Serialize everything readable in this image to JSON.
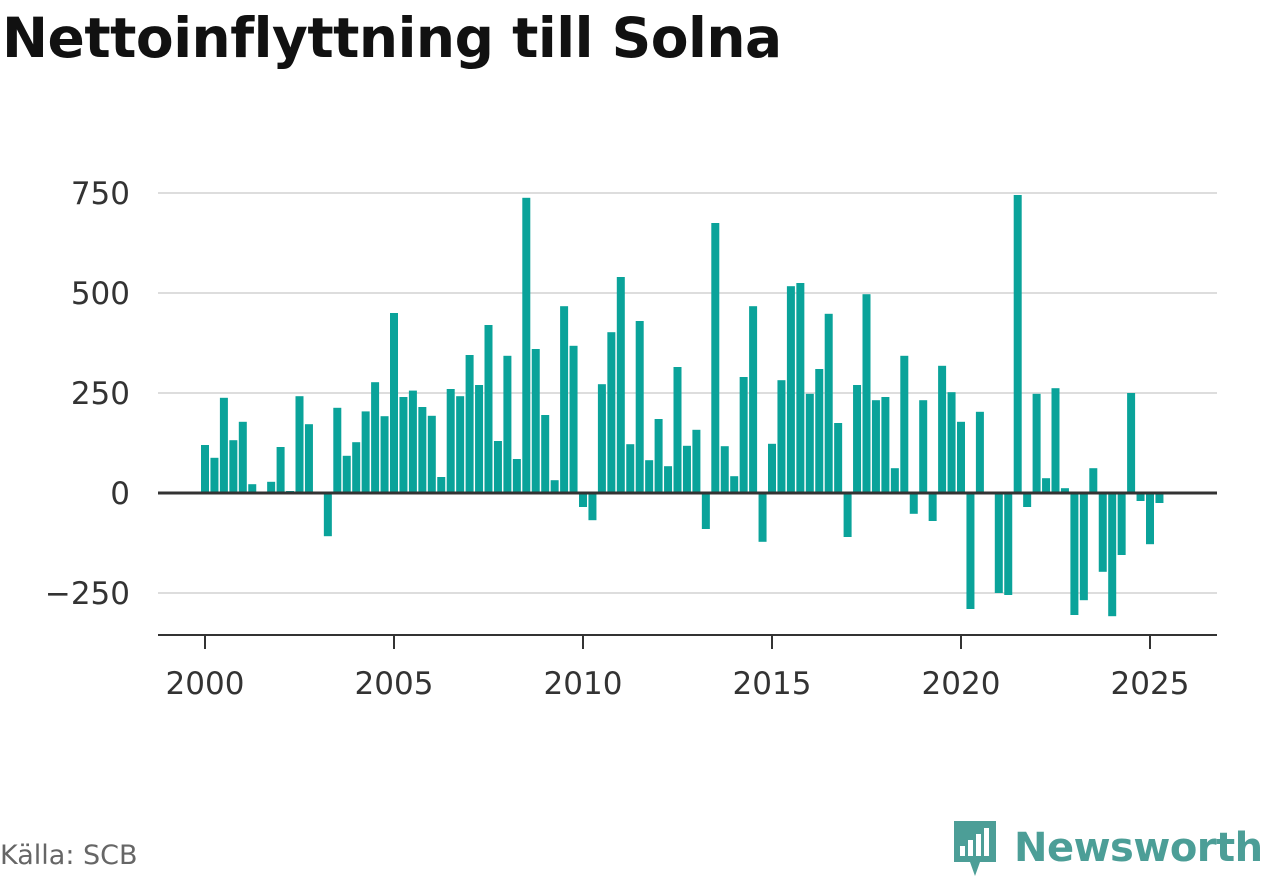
{
  "title": "Nettoinflyttning till Solna",
  "source": "Källa: SCB",
  "brand": {
    "name": "Newsworthy",
    "icon": "newsworthy-logo-icon"
  },
  "colors": {
    "bar": "#0aa39a",
    "grid": "#dddddd",
    "axis": "#333333",
    "brand": "#4c9e97"
  },
  "chart_data": {
    "type": "bar",
    "title": "Nettoinflyttning till Solna",
    "xlabel": "",
    "ylabel": "",
    "xlim": [
      1999.3,
      2026.0
    ],
    "ylim": [
      -280,
      780
    ],
    "grid": true,
    "x_ticks": [
      {
        "value": 2000,
        "label": "2000"
      },
      {
        "value": 2005,
        "label": "2005"
      },
      {
        "value": 2010,
        "label": "2010"
      },
      {
        "value": 2015,
        "label": "2015"
      },
      {
        "value": 2020,
        "label": "2020"
      },
      {
        "value": 2025,
        "label": "2025"
      }
    ],
    "y_ticks": [
      {
        "value": 750,
        "label": "750"
      },
      {
        "value": 500,
        "label": "500"
      },
      {
        "value": 250,
        "label": "250"
      },
      {
        "value": 0,
        "label": "0"
      },
      {
        "value": -250,
        "label": "−250"
      }
    ],
    "series": [
      {
        "x": [
          2000.0,
          2000.25,
          2000.5,
          2000.75,
          2001.0,
          2001.25,
          2001.5,
          2001.75,
          2002.0,
          2002.25,
          2002.5,
          2002.75,
          2003.0,
          2003.25,
          2003.5,
          2003.75,
          2004.0,
          2004.25,
          2004.5,
          2004.75,
          2005.0,
          2005.25,
          2005.5,
          2005.75,
          2006.0,
          2006.25,
          2006.5,
          2006.75,
          2007.0,
          2007.25,
          2007.5,
          2007.75,
          2008.0,
          2008.25,
          2008.5,
          2008.75,
          2009.0,
          2009.25,
          2009.5,
          2009.75,
          2010.0,
          2010.25,
          2010.5,
          2010.75,
          2011.0,
          2011.25,
          2011.5,
          2011.75,
          2012.0,
          2012.25,
          2012.5,
          2012.75,
          2013.0,
          2013.25,
          2013.5,
          2013.75,
          2014.0,
          2014.25,
          2014.5,
          2014.75,
          2015.0,
          2015.25,
          2015.5,
          2015.75,
          2016.0,
          2016.25,
          2016.5,
          2016.75,
          2017.0,
          2017.25,
          2017.5,
          2017.75,
          2018.0,
          2018.25,
          2018.5,
          2018.75,
          2019.0,
          2019.25,
          2019.5,
          2019.75,
          2020.0,
          2020.25,
          2020.5,
          2020.75,
          2021.0,
          2021.25,
          2021.5,
          2021.75,
          2022.0,
          2022.25,
          2022.5,
          2022.75,
          2023.0,
          2023.25,
          2023.5,
          2023.75,
          2024.0,
          2024.25,
          2024.5,
          2024.75,
          2025.0,
          2025.25
        ],
        "values": [
          120,
          88,
          238,
          132,
          178,
          22,
          0,
          28,
          115,
          5,
          242,
          172,
          0,
          -108,
          213,
          93,
          127,
          204,
          277,
          192,
          450,
          240,
          256,
          215,
          193,
          40,
          260,
          242,
          345,
          270,
          420,
          130,
          343,
          85,
          738,
          360,
          195,
          32,
          467,
          368,
          -35,
          -68,
          272,
          402,
          540,
          122,
          430,
          82,
          185,
          67,
          315,
          118,
          158,
          -90,
          675,
          117,
          42,
          290,
          467,
          -122,
          123,
          282,
          517,
          525,
          248,
          310,
          448,
          175,
          -110,
          270,
          497,
          232,
          240,
          62,
          343,
          -52,
          232,
          -70,
          318,
          252,
          178,
          -290,
          203,
          0,
          -250,
          -255,
          745,
          -35,
          248,
          37,
          262,
          12,
          -305,
          -268,
          62,
          -197,
          -308,
          -155,
          250,
          -20,
          -128,
          -25
        ]
      }
    ]
  }
}
